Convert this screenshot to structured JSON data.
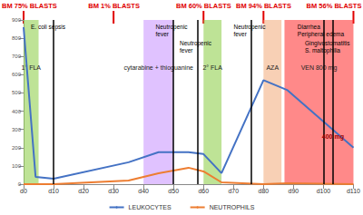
{
  "chart_data": {
    "type": "line",
    "x": [
      0,
      4,
      10,
      35,
      45,
      55,
      60,
      66,
      80,
      88,
      110
    ],
    "series": [
      {
        "name": "LEUKOCYTES",
        "color": "#4472c4",
        "values": [
          860,
          40,
          30,
          120,
          175,
          175,
          165,
          60,
          570,
          515,
          200
        ]
      },
      {
        "name": "NEUTROPHILS",
        "color": "#ed7d31",
        "values": [
          0,
          0,
          0,
          20,
          60,
          90,
          70,
          10,
          0,
          5,
          0
        ]
      }
    ],
    "xlim": [
      0,
      110
    ],
    "xticks": [
      {
        "value": 0,
        "label": "d0"
      },
      {
        "value": 10,
        "label": "d10"
      },
      {
        "value": 20,
        "label": "d20"
      },
      {
        "value": 30,
        "label": "d30"
      },
      {
        "value": 40,
        "label": "d40"
      },
      {
        "value": 50,
        "label": "d50"
      },
      {
        "value": 60,
        "label": "d60"
      },
      {
        "value": 70,
        "label": "d70"
      },
      {
        "value": 80,
        "label": "d80"
      },
      {
        "value": 90,
        "label": "d90"
      },
      {
        "value": 100,
        "label": "d100"
      },
      {
        "value": 110,
        "label": "d110"
      }
    ],
    "ylim": [
      0,
      900
    ],
    "yticks": [
      0,
      100,
      200,
      300,
      400,
      500,
      600,
      700,
      800,
      900
    ],
    "grid": false,
    "legend": "bottom",
    "bone_marrow": [
      {
        "x": 0,
        "label": "BM 75% BLASTS"
      },
      {
        "x": 30,
        "label": "BM 1% BLASTS"
      },
      {
        "x": 60,
        "label": "BM 60% BLASTS"
      },
      {
        "x": 80,
        "label": "BM 94% BLASTS"
      },
      {
        "x": 110,
        "label": "BM 56% BLASTS"
      }
    ],
    "treatments": [
      {
        "start": 0,
        "end": 5,
        "label": "1° FLA",
        "color": "#92d050"
      },
      {
        "start": 40,
        "end": 50,
        "label": "cytarabine + thioguanine",
        "color": "#cc99ff"
      },
      {
        "start": 60,
        "end": 66,
        "label": "2° FLA",
        "color": "#92d050"
      },
      {
        "start": 80,
        "end": 86,
        "label": "AZA",
        "color": "#f4b183"
      },
      {
        "start": 87,
        "end": 110,
        "label": "VEN 800 mg",
        "color": "#ff3b3b"
      }
    ],
    "events": [
      {
        "x": 10,
        "label": "E. coli sepsis"
      },
      {
        "x": 50,
        "label": "Neutropenic\nfever"
      },
      {
        "x": 58,
        "label": "Neutropenic\nfever"
      },
      {
        "x": 76,
        "label": "Neutropenic\nfever"
      },
      {
        "x": 100,
        "label": "Diarrhea\nPeripheral edema"
      },
      {
        "x": 103,
        "label": "Gingivostomatitis\nS. maltophilia"
      }
    ],
    "dose_change": {
      "x": 103,
      "y": 260,
      "label": "400 mg"
    }
  }
}
